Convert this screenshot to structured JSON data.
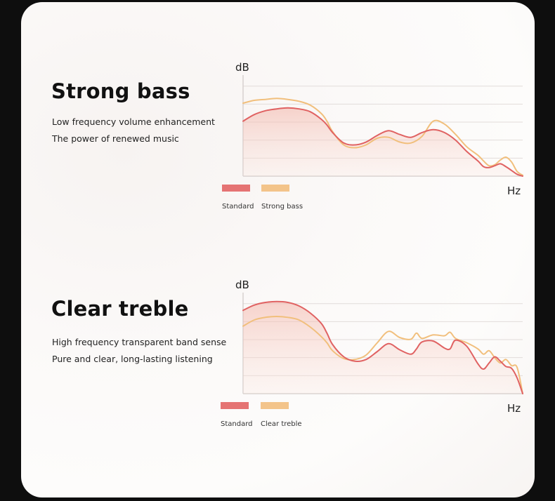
{
  "colors": {
    "standard": "#e06262",
    "enhanced": "#f1bf7c",
    "grid": "#e2dcda",
    "axis": "#cfc8c6"
  },
  "sections": [
    {
      "title": "Strong bass",
      "lines": [
        "Low frequency volume enhancement",
        "The power of renewed music"
      ],
      "legend": [
        "Standard",
        "Strong bass"
      ]
    },
    {
      "title": "Clear treble",
      "lines": [
        "High frequency transparent band sense",
        "Pure and clear, long-lasting listening"
      ],
      "legend": [
        "Standard",
        "Clear treble"
      ]
    }
  ],
  "chart_data": [
    {
      "type": "line",
      "title": "",
      "xlabel": "Hz",
      "ylabel": "dB",
      "ylim": [
        0,
        5
      ],
      "grid": true,
      "legend": "bottom-left",
      "x": [
        0,
        0.04,
        0.08,
        0.12,
        0.16,
        0.2,
        0.24,
        0.28,
        0.3,
        0.32,
        0.36,
        0.4,
        0.44,
        0.48,
        0.52,
        0.56,
        0.6,
        0.64,
        0.68,
        0.72,
        0.76,
        0.8,
        0.84,
        0.86,
        0.88,
        0.9,
        0.92,
        0.94,
        0.96,
        0.98,
        1
      ],
      "series": [
        {
          "name": "Standard",
          "values": [
            2.9,
            3.25,
            3.45,
            3.55,
            3.6,
            3.55,
            3.4,
            3.0,
            2.7,
            2.3,
            1.75,
            1.65,
            1.8,
            2.15,
            2.4,
            2.2,
            2.05,
            2.3,
            2.45,
            2.3,
            1.9,
            1.3,
            0.8,
            0.5,
            0.45,
            0.55,
            0.65,
            0.5,
            0.3,
            0.1,
            0.0
          ]
        },
        {
          "name": "Strong bass",
          "values": [
            3.85,
            4.0,
            4.05,
            4.1,
            4.05,
            3.95,
            3.75,
            3.3,
            2.9,
            2.35,
            1.65,
            1.5,
            1.65,
            2.0,
            2.05,
            1.8,
            1.75,
            2.1,
            2.9,
            2.75,
            2.2,
            1.55,
            1.1,
            0.8,
            0.55,
            0.6,
            0.85,
            1.0,
            0.75,
            0.25,
            0.05
          ]
        }
      ]
    },
    {
      "type": "line",
      "title": "",
      "xlabel": "Hz",
      "ylabel": "dB",
      "ylim": [
        0,
        5
      ],
      "grid": true,
      "legend": "bottom-left",
      "x": [
        0,
        0.04,
        0.08,
        0.12,
        0.16,
        0.2,
        0.24,
        0.28,
        0.3,
        0.32,
        0.36,
        0.4,
        0.44,
        0.48,
        0.52,
        0.56,
        0.6,
        0.62,
        0.64,
        0.68,
        0.72,
        0.74,
        0.76,
        0.8,
        0.84,
        0.86,
        0.88,
        0.9,
        0.92,
        0.94,
        0.96,
        0.98,
        1
      ],
      "series": [
        {
          "name": "Standard",
          "values": [
            4.75,
            5.05,
            5.2,
            5.25,
            5.2,
            5.0,
            4.6,
            4.0,
            3.45,
            2.8,
            2.1,
            1.85,
            1.95,
            2.4,
            2.85,
            2.5,
            2.25,
            2.55,
            2.95,
            3.0,
            2.6,
            2.55,
            3.05,
            2.7,
            1.7,
            1.4,
            1.75,
            2.1,
            1.85,
            1.55,
            1.45,
            0.9,
            0.0
          ]
        },
        {
          "name": "Clear treble",
          "values": [
            3.85,
            4.2,
            4.35,
            4.4,
            4.35,
            4.2,
            3.8,
            3.25,
            2.9,
            2.45,
            2.0,
            1.95,
            2.2,
            2.9,
            3.55,
            3.2,
            3.1,
            3.45,
            3.15,
            3.35,
            3.3,
            3.5,
            3.15,
            2.9,
            2.55,
            2.25,
            2.45,
            2.05,
            1.75,
            1.95,
            1.6,
            1.5,
            0.0
          ]
        }
      ]
    }
  ]
}
